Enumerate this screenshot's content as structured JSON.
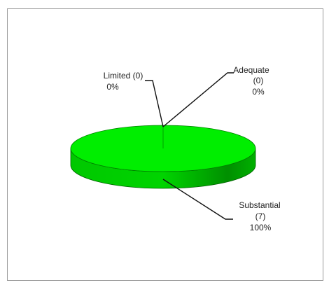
{
  "chart_data": {
    "type": "pie3d",
    "categories": [
      "Limited",
      "Adequate",
      "Substantial"
    ],
    "counts": [
      0,
      0,
      7
    ],
    "count_labels": [
      "(0)",
      "(0)",
      "(7)"
    ],
    "values": [
      0,
      0,
      100
    ],
    "value_labels": [
      "0%",
      "0%",
      "100%"
    ],
    "colors": [
      "#00ee00",
      "#00ee00",
      "#00ee00"
    ]
  }
}
